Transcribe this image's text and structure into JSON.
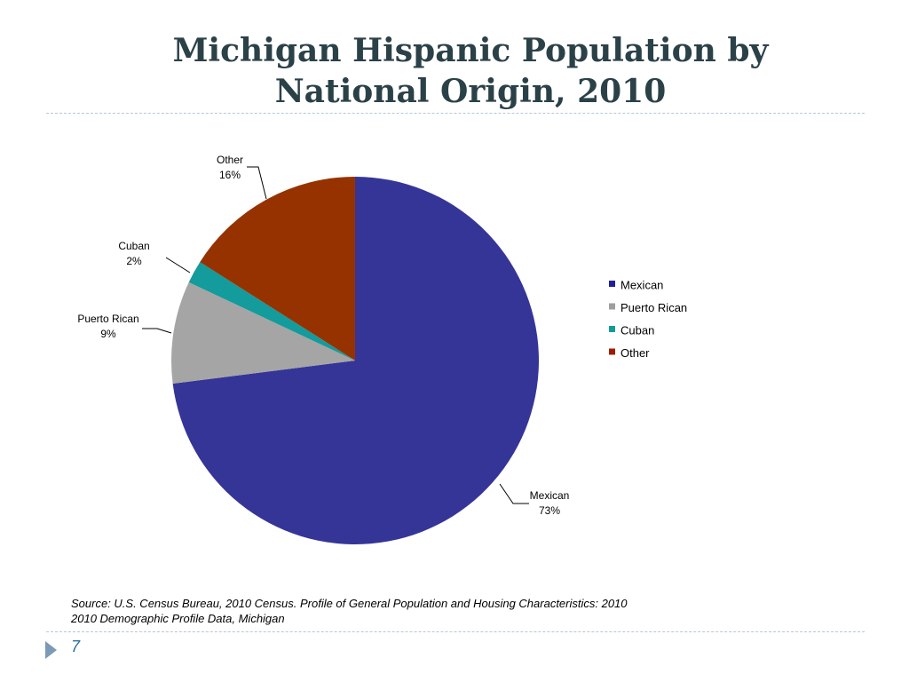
{
  "slide": {
    "title_line1": "Michigan Hispanic Population by",
    "title_line2": "National Origin, 2010",
    "source_line1": "Source: U.S. Census Bureau, 2010 Census. Profile of General Population and Housing Characteristics: 2010",
    "source_line2": "2010 Demographic Profile Data, Michigan",
    "page_number": "7"
  },
  "chart_data": {
    "type": "pie",
    "title": "Michigan Hispanic Population by National Origin, 2010",
    "categories": [
      "Mexican",
      "Puerto Rican",
      "Cuban",
      "Other"
    ],
    "values": [
      73,
      9,
      2,
      16
    ],
    "labels": [
      "73%",
      "9%",
      "2%",
      "16%"
    ],
    "colors": [
      "#353598",
      "#a5a5a5",
      "#149b9b",
      "#963200"
    ],
    "legend": {
      "position": "right",
      "entries": [
        "Mexican",
        "Puerto Rican",
        "Cuban",
        "Other"
      ],
      "marker_colors": [
        "#1f1f9c",
        "#9e9e9e",
        "#129c98",
        "#a01c00"
      ]
    }
  }
}
